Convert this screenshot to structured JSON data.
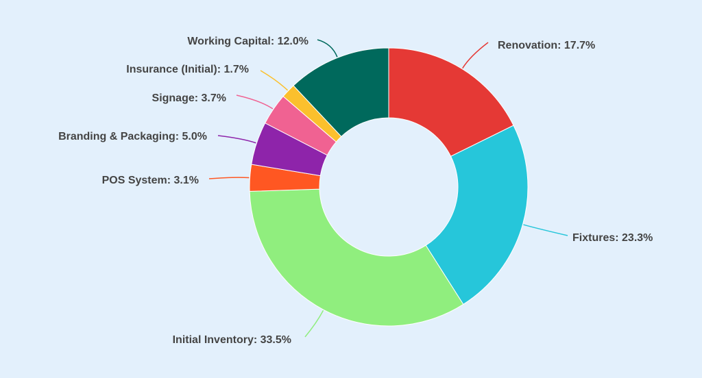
{
  "chart_data": {
    "type": "donut",
    "labels": [
      "Renovation: 17.7%",
      "Fixtures: 23.3%",
      "Initial Inventory: 33.5%",
      "POS System: 3.1%",
      "Branding & Packaging: 5.0%",
      "Signage: 3.7%",
      "Insurance (Initial): 1.7%",
      "Working Capital: 12.0%"
    ],
    "values": [
      17.7,
      23.3,
      33.5,
      3.1,
      5.0,
      3.7,
      1.7,
      12.0
    ],
    "colors": [
      "#e53935",
      "#26c6da",
      "#90ee7e",
      "#ff5722",
      "#8e24aa",
      "#f06292",
      "#fbc02d",
      "#00695c"
    ]
  }
}
